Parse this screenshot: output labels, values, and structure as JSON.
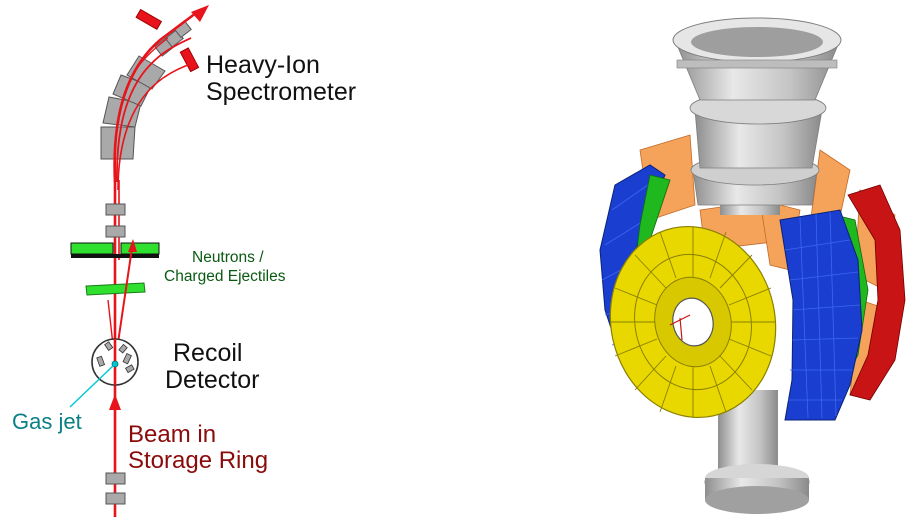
{
  "labels": {
    "spectrometer_line1": "Heavy-Ion",
    "spectrometer_line2": "Spectrometer",
    "neutrons_line1": "Neutrons /",
    "neutrons_line2": "Charged Ejectiles",
    "recoil_line1": "Recoil",
    "recoil_line2": "Detector",
    "gas_jet": "Gas jet",
    "beam_line1": "Beam in",
    "beam_line2": "Storage Ring"
  },
  "colors": {
    "beam": "#e8141c",
    "beam_label": "#8b0a0a",
    "magnet": "#a9a9a9",
    "neutron_detector": "#2fe02f",
    "gas_jet": "#00c8d2",
    "gas_jet_label": "#0a7f86",
    "ejectile_label": "#0a5a12",
    "detector_yellow": "#e8d800",
    "detector_blue": "#1a3fd0",
    "detector_red": "#c81414",
    "detector_orange": "#f5a25a",
    "detector_green": "#1fb81f",
    "steel": "#c8c8c8"
  },
  "icons": [
    "beam-arrow-icon",
    "magnet-icon",
    "neutron-detector-icon",
    "recoil-detector-icon",
    "gas-jet-icon"
  ]
}
